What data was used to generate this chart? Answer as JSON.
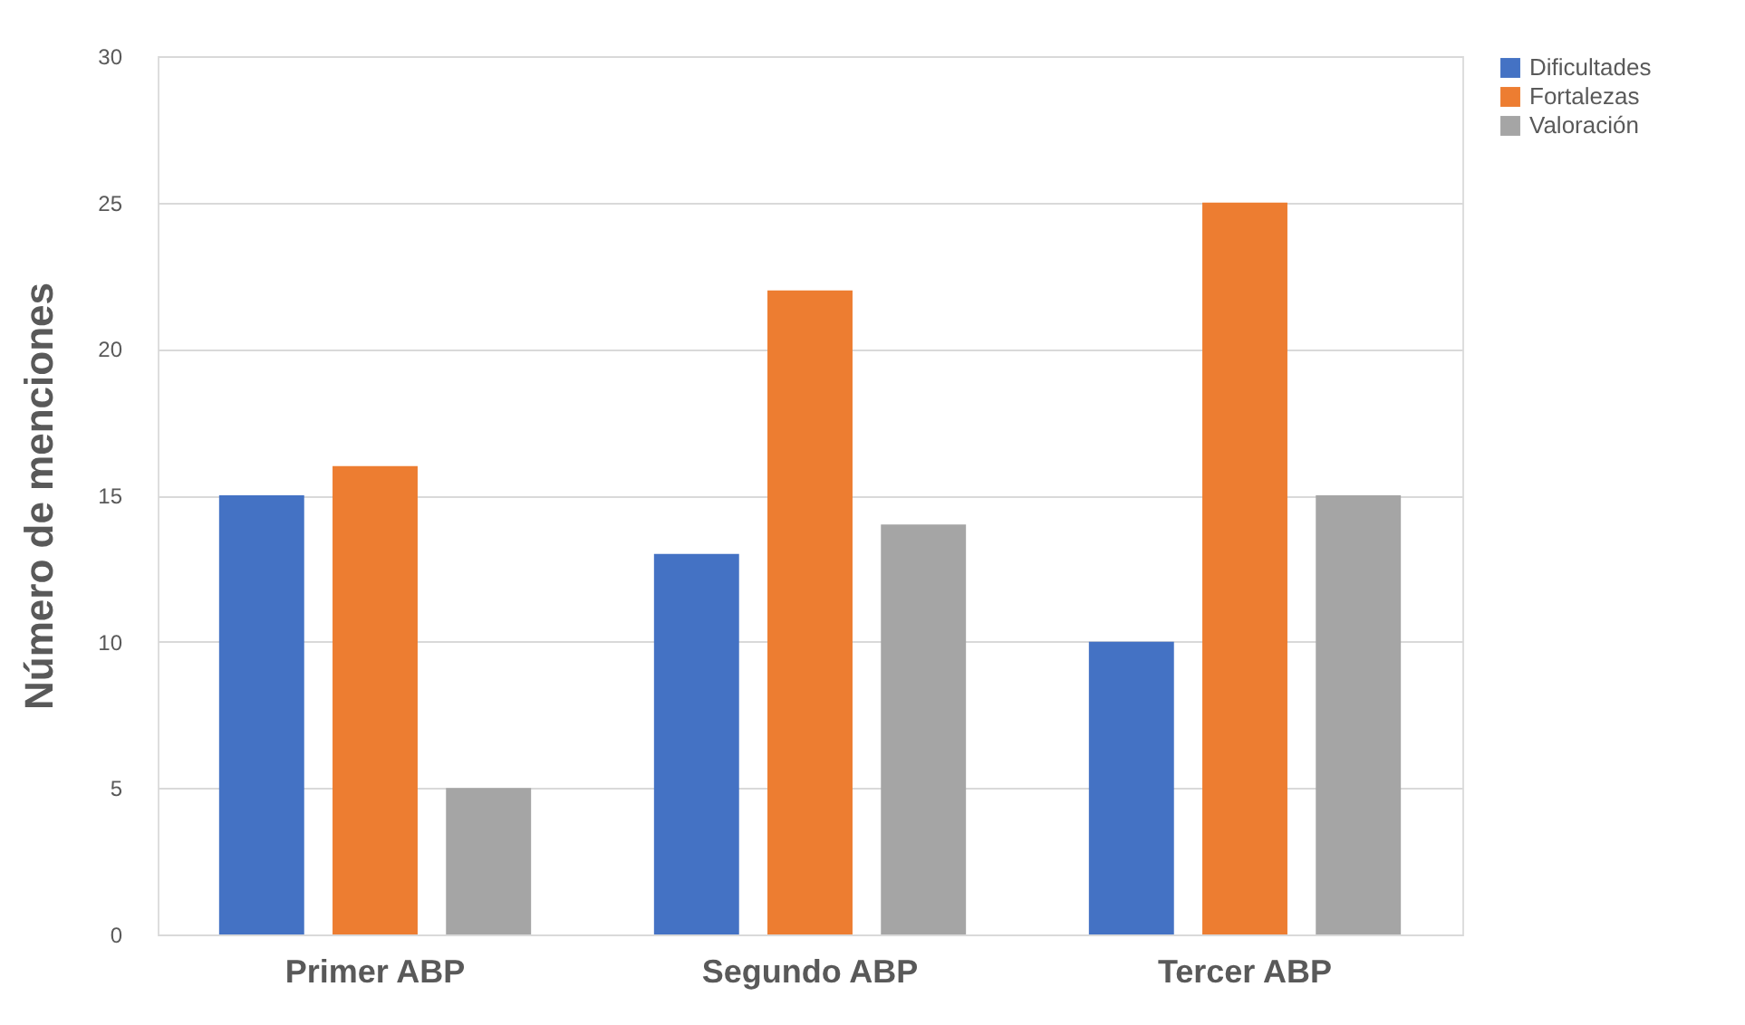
{
  "chart_data": {
    "type": "bar",
    "ylabel": "Número de menciones",
    "categories": [
      "Primer ABP",
      "Segundo ABP",
      "Tercer ABP"
    ],
    "series": [
      {
        "name": "Dificultades",
        "color": "#4472c4",
        "values": [
          15,
          13,
          10
        ]
      },
      {
        "name": "Fortalezas",
        "color": "#ed7d31",
        "values": [
          16,
          22,
          25
        ]
      },
      {
        "name": "Valoración",
        "color": "#a5a5a5",
        "values": [
          5,
          14,
          15
        ]
      }
    ],
    "ylim": [
      0,
      30
    ],
    "yticks": [
      0,
      5,
      10,
      15,
      20,
      25,
      30
    ],
    "grid": "y",
    "legend": "right"
  }
}
